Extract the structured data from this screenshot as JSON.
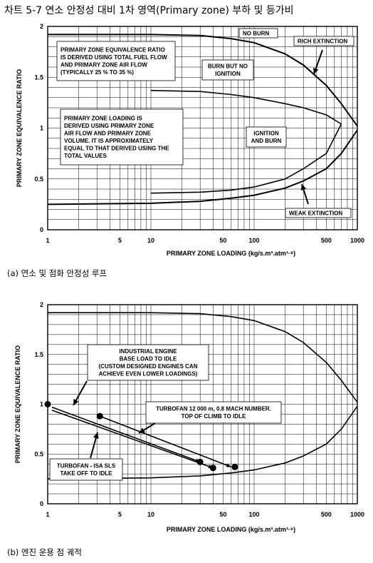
{
  "page_title": "차트 5-7 연소 안정성 대비 1차 영역(Primary zone) 부하 및 등가비",
  "chart_data": [
    {
      "id": "a",
      "type": "line",
      "caption": "(a) 연소 및 점화 안정성 루프",
      "xlabel": "PRIMARY ZONE LOADING (kg/s.m³.atm¹·⁸)",
      "ylabel": "PRIMARY ZONE EQUIVALENCE RATIO",
      "xscale": "log",
      "xlim": [
        1,
        1000
      ],
      "ylim": [
        0,
        2
      ],
      "x_ticks": [
        "1",
        "5",
        "10",
        "50",
        "100",
        "500",
        "1000"
      ],
      "y_ticks": [
        "0",
        "0.5",
        "1",
        "1.5",
        "2"
      ],
      "grid": true,
      "series": [
        {
          "style": "bold",
          "points": [
            [
              1,
              1.92
            ],
            [
              10,
              1.92
            ],
            [
              30,
              1.91
            ],
            [
              60,
              1.88
            ],
            [
              100,
              1.84
            ],
            [
              200,
              1.73
            ],
            [
              300,
              1.62
            ],
            [
              500,
              1.42
            ],
            [
              700,
              1.24
            ],
            [
              1000,
              1.02
            ]
          ]
        },
        {
          "style": "bold",
          "points": [
            [
              1,
              0.25
            ],
            [
              10,
              0.26
            ],
            [
              30,
              0.28
            ],
            [
              60,
              0.31
            ],
            [
              100,
              0.34
            ],
            [
              200,
              0.41
            ],
            [
              300,
              0.48
            ],
            [
              500,
              0.6
            ],
            [
              700,
              0.75
            ],
            [
              1000,
              0.98
            ]
          ]
        },
        {
          "style": "normal",
          "points": [
            [
              10,
              1.37
            ],
            [
              30,
              1.36
            ],
            [
              60,
              1.33
            ],
            [
              100,
              1.3
            ],
            [
              200,
              1.24
            ],
            [
              300,
              1.2
            ],
            [
              500,
              1.13
            ],
            [
              700,
              1.04
            ]
          ]
        },
        {
          "style": "normal",
          "points": [
            [
              10,
              0.36
            ],
            [
              30,
              0.37
            ],
            [
              60,
              0.39
            ],
            [
              100,
              0.42
            ],
            [
              200,
              0.5
            ],
            [
              300,
              0.6
            ],
            [
              500,
              0.75
            ],
            [
              700,
              1.04
            ]
          ]
        }
      ],
      "annotations": [
        {
          "id": "no-burn",
          "lines": [
            "NO BURN"
          ],
          "box": true
        },
        {
          "id": "rich-extinction",
          "lines": [
            "RICH EXTINCTION"
          ],
          "box": true
        },
        {
          "id": "equivalence-note",
          "lines": [
            "PRIMARY ZONE EQUIVALENCE RATIO",
            "IS DERIVED USING TOTAL FUEL FLOW",
            "AND PRIMARY ZONE AIR FLOW",
            "(TYPICALLY 25 % TO 35 %)"
          ],
          "box": true
        },
        {
          "id": "burn-no-ignition",
          "lines": [
            "BURN BUT NO",
            "IGNITION"
          ],
          "box": true
        },
        {
          "id": "loading-note",
          "lines": [
            "PRIMARY ZONE LOADING IS",
            "DERIVED USING PRIMARY ZONE",
            "AIR FLOW AND PRIMARY ZONE",
            "VOLUME. IT IS APPROXIMATELY",
            "EQUAL TO THAT DERIVED USING THE",
            "TOTAL VALUES"
          ],
          "box": true
        },
        {
          "id": "ignition-burn",
          "lines": [
            "IGNITION",
            "AND BURN"
          ],
          "box": true
        },
        {
          "id": "weak-extinction",
          "lines": [
            "WEAK EXTINCTION"
          ],
          "box": true
        }
      ]
    },
    {
      "id": "b",
      "type": "line",
      "caption": "(b) 엔진 운용 점 궤적",
      "xlabel": "PRIMARY ZONE LOADING (kg/s.m³.atm¹·⁸)",
      "ylabel": "PRIMARY ZONE EQUIVALENCE RATIO",
      "xscale": "log",
      "xlim": [
        1,
        1000
      ],
      "ylim": [
        0,
        2
      ],
      "x_ticks": [
        "1",
        "5",
        "10",
        "50",
        "100",
        "500",
        "1000"
      ],
      "y_ticks": [
        "0",
        "0.5",
        "1",
        "1.5",
        "2"
      ],
      "grid": true,
      "series": [
        {
          "style": "normal",
          "points": [
            [
              1,
              1.92
            ],
            [
              10,
              1.92
            ],
            [
              30,
              1.91
            ],
            [
              60,
              1.88
            ],
            [
              100,
              1.84
            ],
            [
              200,
              1.73
            ],
            [
              300,
              1.62
            ],
            [
              500,
              1.42
            ],
            [
              700,
              1.24
            ],
            [
              1000,
              1.02
            ]
          ]
        },
        {
          "style": "normal",
          "points": [
            [
              1,
              0.25
            ],
            [
              10,
              0.26
            ],
            [
              30,
              0.28
            ],
            [
              60,
              0.31
            ],
            [
              100,
              0.34
            ],
            [
              200,
              0.41
            ],
            [
              300,
              0.48
            ],
            [
              500,
              0.6
            ],
            [
              700,
              0.75
            ],
            [
              1000,
              0.98
            ]
          ]
        }
      ],
      "trajectories": [
        {
          "name": "INDUSTRIAL ENGINE BASE LOAD TO IDLE",
          "from": [
            1.1,
            0.97
          ],
          "to": [
            30,
            0.42
          ]
        },
        {
          "name": "TURBOFAN - ISA SLS TAKE OFF TO IDLE",
          "from": [
            1.1,
            0.94
          ],
          "to": [
            40,
            0.36
          ]
        },
        {
          "name": "TURBOFAN 12 000 m, 0.8 MACH NUMBER. TOP OF CLIMB TO IDLE",
          "from": [
            3.2,
            0.88
          ],
          "to": [
            60,
            0.37
          ]
        }
      ],
      "points": [
        [
          1,
          1.0
        ],
        [
          3.2,
          0.88
        ],
        [
          30,
          0.42
        ],
        [
          40,
          0.36
        ],
        [
          65,
          0.37
        ]
      ],
      "annotations": [
        {
          "id": "industrial-note",
          "lines": [
            "INDUSTRIAL ENGINE",
            "BASE LOAD TO IDLE",
            "(CUSTOM DESIGNED ENGINES CAN",
            "ACHIEVE EVEN LOWER LOADINGS)"
          ],
          "box": true
        },
        {
          "id": "turbofan-climb-note",
          "lines": [
            "TURBOFAN 12 000 m, 0.8 MACH NUMBER.",
            "TOP OF CLIMB TO IDLE"
          ],
          "box": true
        },
        {
          "id": "turbofan-sls-note",
          "lines": [
            "TURBOFAN - ISA SLS",
            "TAKE OFF TO IDLE"
          ],
          "box": true
        }
      ]
    }
  ]
}
